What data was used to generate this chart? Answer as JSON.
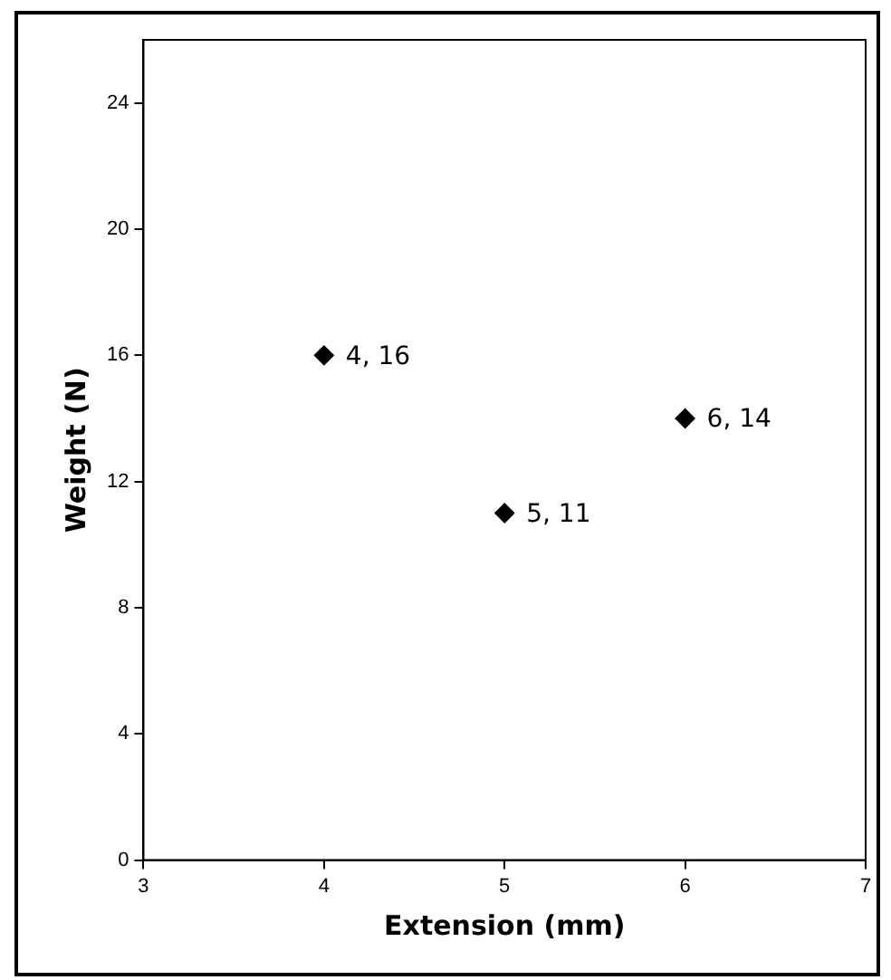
{
  "chart_data": {
    "type": "scatter",
    "xlabel": "Extension (mm)",
    "ylabel": "Weight (N)",
    "x": [
      4,
      5,
      6
    ],
    "values": [
      16,
      11,
      14
    ],
    "color": "#000000",
    "marker": "diamond",
    "value_labels": [
      "4, 16",
      "5, 11",
      "6, 14"
    ],
    "xlim": [
      3,
      7
    ],
    "xticks": [
      3,
      4,
      5,
      6,
      7
    ],
    "ylim": [
      0,
      26
    ],
    "yticks": [
      0,
      4,
      8,
      12,
      16,
      20,
      24
    ],
    "grid": false,
    "legend": false
  }
}
